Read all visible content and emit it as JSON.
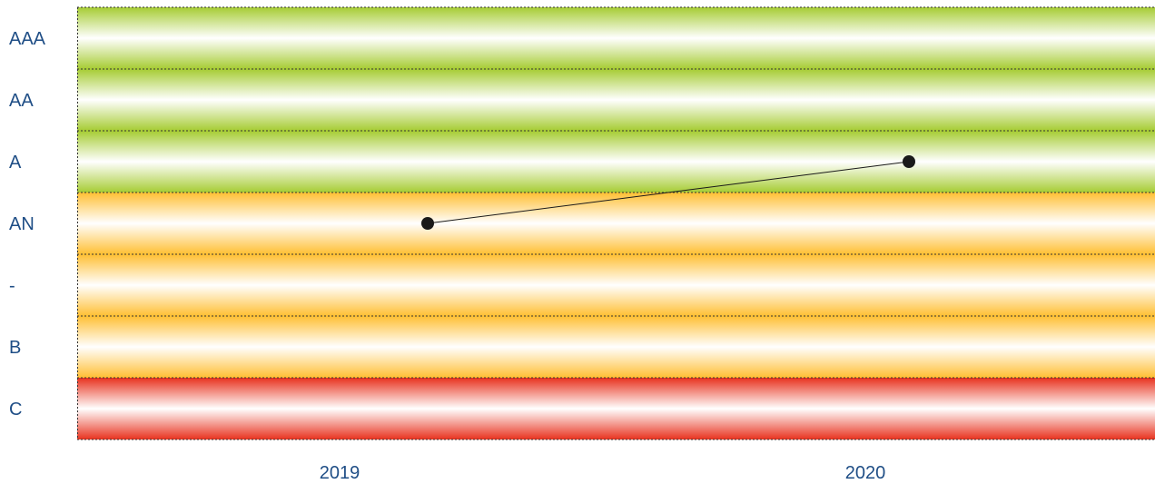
{
  "chart_data": {
    "type": "line",
    "title": "",
    "xlabel": "",
    "ylabel": "",
    "categories": [
      "2019",
      "2020"
    ],
    "y_levels": [
      "AAA",
      "AA",
      "A",
      "AN",
      "-",
      "B",
      "C"
    ],
    "band_colors": {
      "AAA": "#a6cc33",
      "AA": "#a6cc33",
      "A": "#a6cc33",
      "AN": "#ffbf33",
      "-": "#ffbf33",
      "B": "#ffbf33",
      "C": "#e8321e"
    },
    "series": [
      {
        "points": [
          {
            "x": "2019",
            "y": "AN"
          },
          {
            "x": "2020",
            "y": "A"
          }
        ]
      }
    ],
    "grid": true,
    "legend": "none",
    "line_color": "#1a1a1a"
  }
}
